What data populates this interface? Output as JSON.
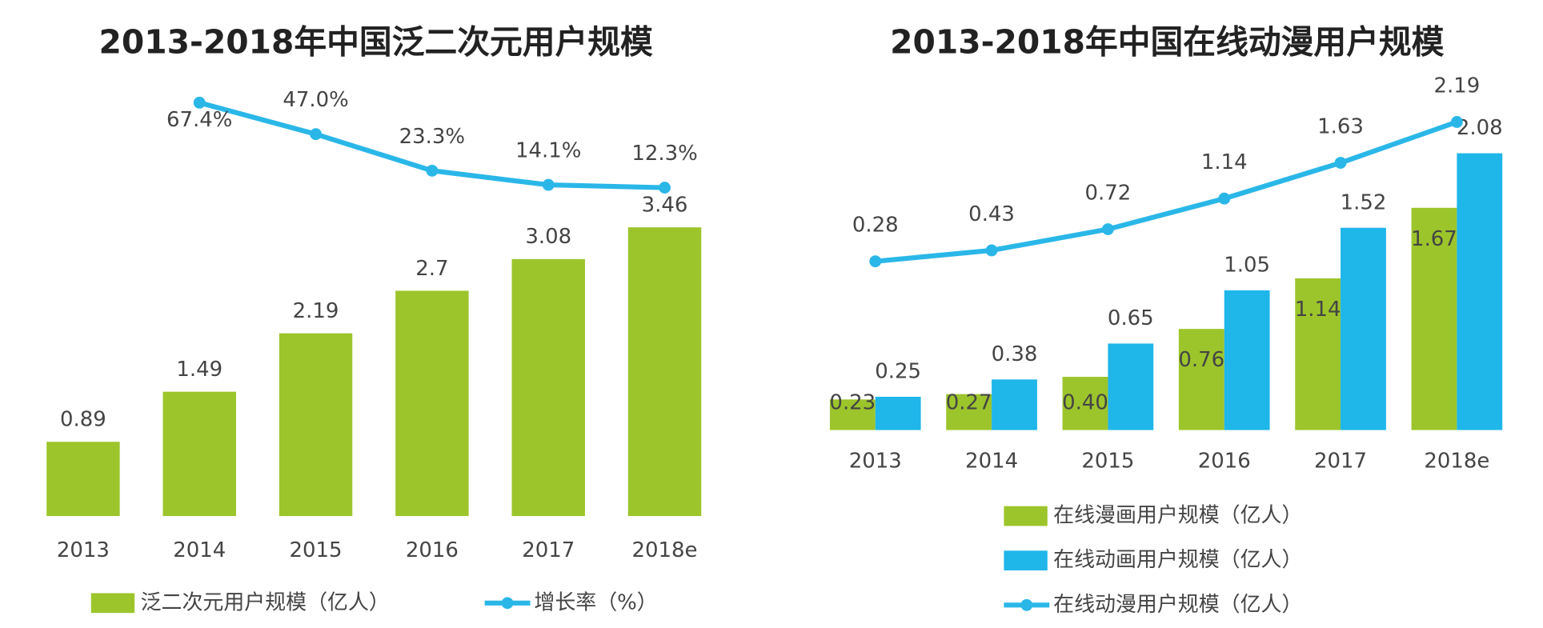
{
  "chart_data": [
    {
      "type": "combo",
      "title": "2013-2018年中国泛二次元用户规模",
      "categories": [
        "2013",
        "2014",
        "2015",
        "2016",
        "2017",
        "2018e"
      ],
      "series": [
        {
          "name": "泛二次元用户规模（亿人）",
          "type": "bar",
          "color": "#9cc52b",
          "values": [
            0.89,
            1.49,
            2.19,
            2.7,
            3.08,
            3.46
          ]
        },
        {
          "name": "增长率（%）",
          "type": "line",
          "axis": "y2",
          "color": "#2ab7e8",
          "values": [
            null,
            67.4,
            47.0,
            23.3,
            14.1,
            12.3
          ],
          "value_labels": [
            null,
            "67.4%",
            "47.0%",
            "23.3%",
            "14.1%",
            "12.3%"
          ]
        }
      ]
    },
    {
      "type": "combo",
      "title": "2013-2018年中国在线动漫用户规模",
      "categories": [
        "2013",
        "2014",
        "2015",
        "2016",
        "2017",
        "2018e"
      ],
      "series": [
        {
          "name": "在线漫画用户规模（亿人）",
          "type": "bar",
          "color": "#9cc52b",
          "values": [
            0.23,
            0.27,
            0.4,
            0.76,
            1.14,
            1.67
          ],
          "value_labels": [
            "0.23",
            "0.27",
            "0.40",
            "0.76",
            "1.14",
            "1.67"
          ]
        },
        {
          "name": "在线动画用户规模（亿人）",
          "type": "bar",
          "color": "#1fb6ea",
          "values": [
            0.25,
            0.38,
            0.65,
            1.05,
            1.52,
            2.08
          ]
        },
        {
          "name": "在线动漫用户规模（亿人）",
          "type": "line",
          "axis": "y2",
          "color": "#2ab7e8",
          "values": [
            0.28,
            0.43,
            0.72,
            1.14,
            1.63,
            2.19
          ]
        }
      ]
    }
  ]
}
